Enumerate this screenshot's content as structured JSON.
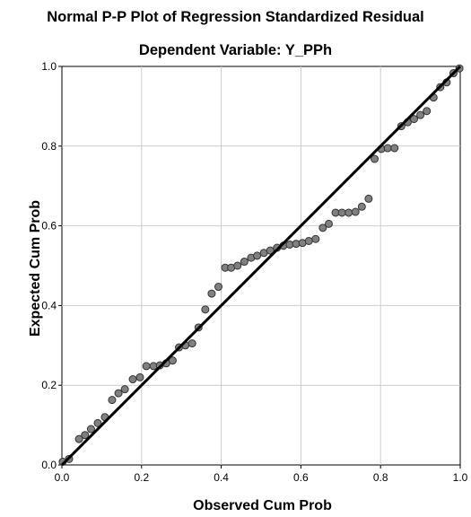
{
  "chart_data": {
    "type": "scatter",
    "title": "Normal P-P Plot of Regression Standardized Residual",
    "subtitle": "Dependent Variable: Y_PPh",
    "xlabel": "Observed Cum Prob",
    "ylabel": "Expected Cum Prob",
    "xlim": [
      0,
      1
    ],
    "ylim": [
      0,
      1
    ],
    "x_ticks": [
      "0.0",
      "0.2",
      "0.4",
      "0.6",
      "0.8",
      "1.0"
    ],
    "y_ticks": [
      "0.0",
      "0.2",
      "0.4",
      "0.6",
      "0.8",
      "1.0"
    ],
    "grid": true,
    "reference_line": {
      "x": [
        0,
        1
      ],
      "y": [
        0,
        1
      ]
    },
    "colors": {
      "points": "#808080",
      "point_edge": "#333333",
      "line": "#000000",
      "grid": "#cccccc"
    },
    "points": [
      {
        "x": 0.002,
        "y": 0.008
      },
      {
        "x": 0.018,
        "y": 0.015
      },
      {
        "x": 0.043,
        "y": 0.065
      },
      {
        "x": 0.058,
        "y": 0.075
      },
      {
        "x": 0.073,
        "y": 0.09
      },
      {
        "x": 0.09,
        "y": 0.105
      },
      {
        "x": 0.108,
        "y": 0.12
      },
      {
        "x": 0.126,
        "y": 0.163
      },
      {
        "x": 0.142,
        "y": 0.18
      },
      {
        "x": 0.158,
        "y": 0.19
      },
      {
        "x": 0.178,
        "y": 0.215
      },
      {
        "x": 0.196,
        "y": 0.22
      },
      {
        "x": 0.212,
        "y": 0.248
      },
      {
        "x": 0.23,
        "y": 0.248
      },
      {
        "x": 0.246,
        "y": 0.25
      },
      {
        "x": 0.262,
        "y": 0.255
      },
      {
        "x": 0.278,
        "y": 0.262
      },
      {
        "x": 0.294,
        "y": 0.295
      },
      {
        "x": 0.31,
        "y": 0.3
      },
      {
        "x": 0.327,
        "y": 0.305
      },
      {
        "x": 0.343,
        "y": 0.345
      },
      {
        "x": 0.36,
        "y": 0.39
      },
      {
        "x": 0.376,
        "y": 0.43
      },
      {
        "x": 0.393,
        "y": 0.447
      },
      {
        "x": 0.41,
        "y": 0.495
      },
      {
        "x": 0.425,
        "y": 0.495
      },
      {
        "x": 0.441,
        "y": 0.5
      },
      {
        "x": 0.458,
        "y": 0.51
      },
      {
        "x": 0.475,
        "y": 0.52
      },
      {
        "x": 0.49,
        "y": 0.525
      },
      {
        "x": 0.507,
        "y": 0.532
      },
      {
        "x": 0.523,
        "y": 0.538
      },
      {
        "x": 0.54,
        "y": 0.545
      },
      {
        "x": 0.556,
        "y": 0.55
      },
      {
        "x": 0.572,
        "y": 0.553
      },
      {
        "x": 0.588,
        "y": 0.555
      },
      {
        "x": 0.604,
        "y": 0.557
      },
      {
        "x": 0.62,
        "y": 0.562
      },
      {
        "x": 0.637,
        "y": 0.567
      },
      {
        "x": 0.655,
        "y": 0.595
      },
      {
        "x": 0.67,
        "y": 0.605
      },
      {
        "x": 0.687,
        "y": 0.633
      },
      {
        "x": 0.703,
        "y": 0.633
      },
      {
        "x": 0.72,
        "y": 0.633
      },
      {
        "x": 0.737,
        "y": 0.635
      },
      {
        "x": 0.753,
        "y": 0.648
      },
      {
        "x": 0.77,
        "y": 0.668
      },
      {
        "x": 0.785,
        "y": 0.768
      },
      {
        "x": 0.802,
        "y": 0.793
      },
      {
        "x": 0.818,
        "y": 0.795
      },
      {
        "x": 0.835,
        "y": 0.795
      },
      {
        "x": 0.852,
        "y": 0.85
      },
      {
        "x": 0.868,
        "y": 0.86
      },
      {
        "x": 0.884,
        "y": 0.868
      },
      {
        "x": 0.9,
        "y": 0.878
      },
      {
        "x": 0.916,
        "y": 0.888
      },
      {
        "x": 0.933,
        "y": 0.922
      },
      {
        "x": 0.95,
        "y": 0.948
      },
      {
        "x": 0.966,
        "y": 0.96
      },
      {
        "x": 0.983,
        "y": 0.983
      },
      {
        "x": 0.998,
        "y": 0.995
      }
    ]
  }
}
